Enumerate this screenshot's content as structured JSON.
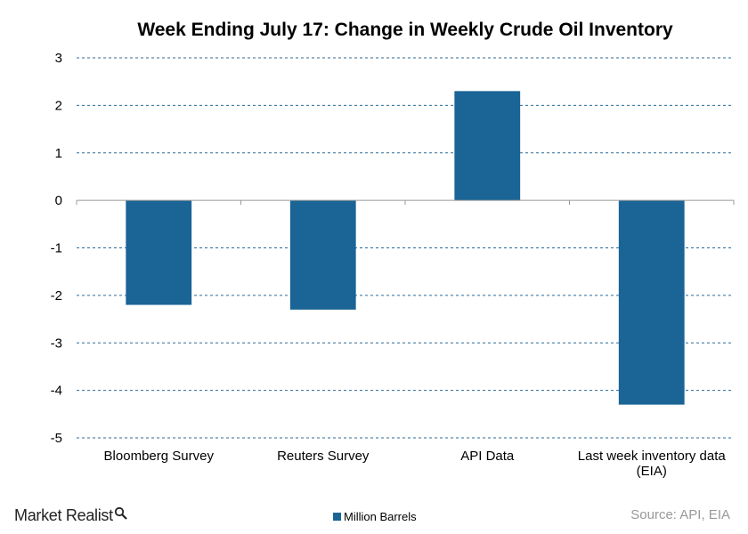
{
  "title": "Week Ending July 17: Change in Weekly Crude Oil Inventory",
  "brand": {
    "name": "Market Realist",
    "icon": "magnifier-icon"
  },
  "legend": {
    "label": "Million Barrels"
  },
  "source": "Source: API, EIA",
  "colors": {
    "bar": "#1a6496",
    "grid": "#2a6a9a",
    "axis": "#999999"
  },
  "chart_data": {
    "type": "bar",
    "title": "Week Ending July 17: Change in Weekly Crude Oil Inventory",
    "categories": [
      "Bloomberg Survey",
      "Reuters Survey",
      "API Data",
      "Last week inventory data (EIA)"
    ],
    "category_lines": [
      [
        "Bloomberg Survey"
      ],
      [
        "Reuters Survey"
      ],
      [
        "API Data"
      ],
      [
        "Last week inventory data",
        "(EIA)"
      ]
    ],
    "series": [
      {
        "name": "Million Barrels",
        "values": [
          -2.2,
          -2.3,
          2.3,
          -4.3
        ]
      }
    ],
    "yticks": [
      3,
      2,
      1,
      0,
      -1,
      -2,
      -3,
      -4,
      -5
    ],
    "ylim": [
      -5,
      3
    ],
    "xlabel": "",
    "ylabel": "",
    "grid": true,
    "legend_position": "bottom"
  }
}
